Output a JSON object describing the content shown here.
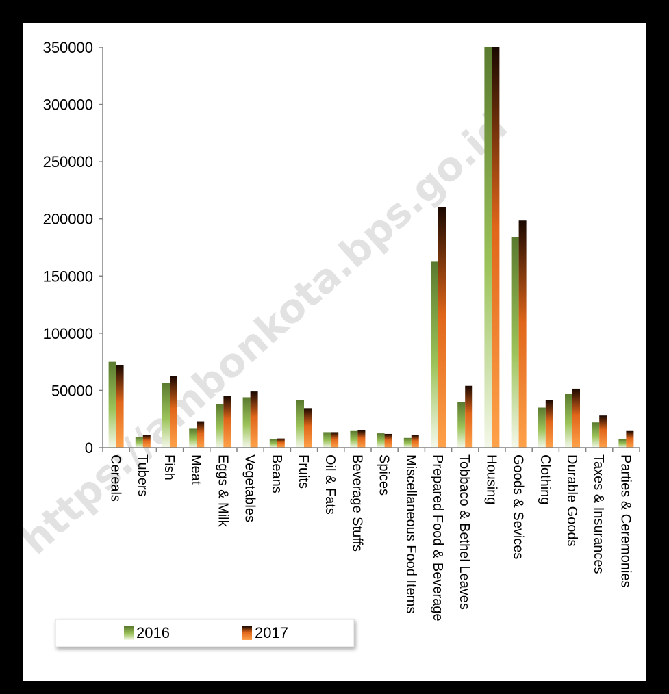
{
  "chart_data": {
    "type": "bar",
    "title": "",
    "xlabel": "",
    "ylabel": "",
    "ylim": [
      0,
      350000
    ],
    "yticks": [
      0,
      50000,
      100000,
      150000,
      200000,
      250000,
      300000,
      350000
    ],
    "grid": false,
    "legend_position": "bottom-left",
    "categories": [
      "Cereals",
      "Tubers",
      "Fish",
      "Meat",
      "Eggs & Milk",
      "Vegetables",
      "Beans",
      "Fruits",
      "Oil & Fats",
      "Beverage Stuffs",
      "Spices",
      "Miscellaneous Food Items",
      "Prepared Food & Beverage",
      "Tobbaco & Bethel Leaves",
      "Housing",
      "Goods & Sevices",
      "Clothing",
      "Durable Goods",
      "Taxes & Insurances",
      "Parties & Ceremonies"
    ],
    "series": [
      {
        "name": "2016",
        "color_top": "#5a7a2e",
        "color_bottom": "#f4f8ea",
        "values": [
          75000,
          9500,
          56500,
          16500,
          38000,
          44000,
          7500,
          41500,
          13500,
          14500,
          12500,
          8500,
          162500,
          39500,
          350000,
          184000,
          35000,
          47000,
          22000,
          7500
        ]
      },
      {
        "name": "2017",
        "color_top": "#1a0800",
        "color_bottom": "#ff8a2a",
        "values": [
          72000,
          11000,
          62500,
          23000,
          45000,
          49000,
          8000,
          34500,
          13500,
          15000,
          12000,
          11000,
          210000,
          54000,
          350000,
          198500,
          41500,
          51500,
          28000,
          14500
        ]
      }
    ]
  },
  "watermark": "https://ambonkota.bps.go.id"
}
